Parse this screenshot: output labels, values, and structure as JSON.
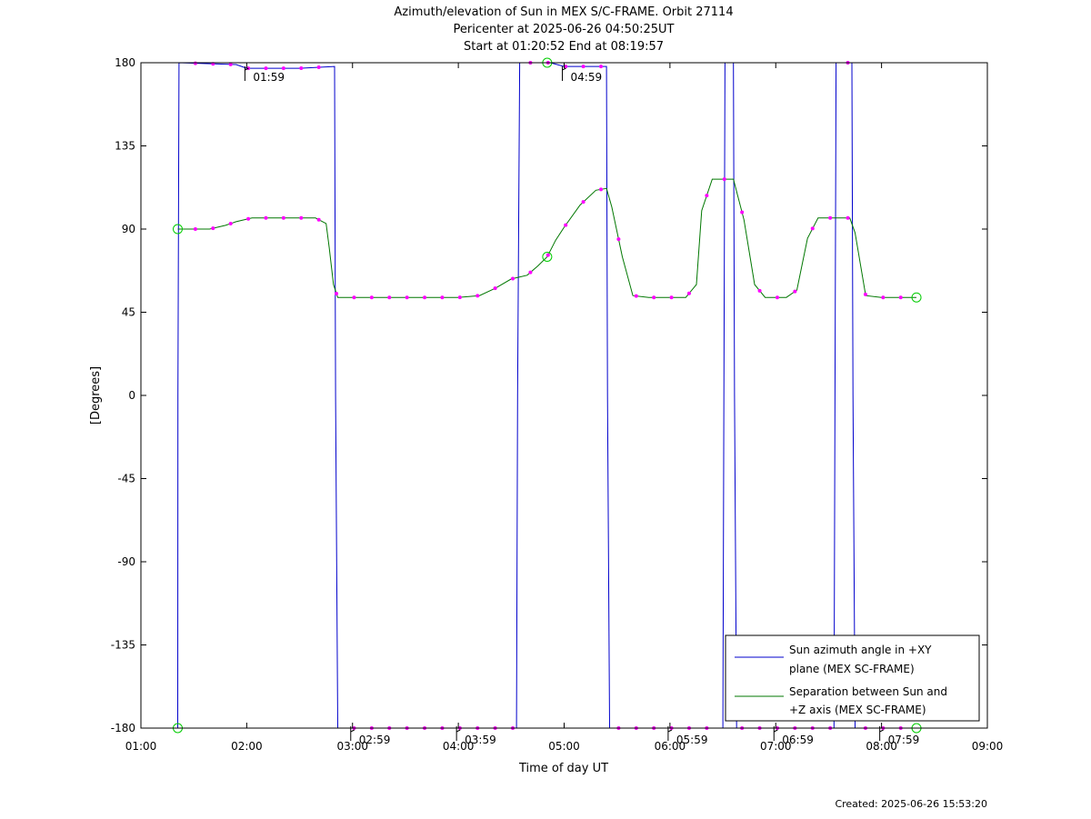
{
  "title": {
    "line1": "Azimuth/elevation of Sun in MEX S/C-FRAME.  Orbit 27114",
    "line2": "Pericenter at 2025-06-26 04:50:25UT",
    "line3": "Start at 01:20:52 End at 08:19:57"
  },
  "created": "Created: 2025-06-26 15:53:20",
  "colors": {
    "azimuth": "#0000cc",
    "separation": "#007700",
    "markers": "#ff00ff",
    "endpoints": "#00cc00"
  },
  "chart_data": {
    "type": "line",
    "xlabel": "Time of day UT",
    "ylabel": "[Degrees]",
    "xlim": [
      1.0,
      9.0
    ],
    "ylim": [
      -180,
      180
    ],
    "x_ticks": [
      "01:00",
      "02:00",
      "03:00",
      "04:00",
      "05:00",
      "06:00",
      "07:00",
      "08:00",
      "09:00"
    ],
    "y_ticks": [
      "180",
      "135",
      "90",
      "45",
      "0",
      "-45",
      "-90",
      "-135",
      "-180"
    ],
    "grid": false,
    "legend_position": "bottom-right",
    "series": [
      {
        "name": "Sun azimuth angle in +XY plane (MEX SC-FRAME)",
        "legend_lines": [
          "Sun azimuth angle in +XY",
          "plane (MEX SC-FRAME)"
        ],
        "x": [
          1.348,
          1.35,
          1.36,
          1.9,
          2.0,
          2.5,
          2.83,
          2.84,
          2.86,
          4.5,
          4.55,
          4.56,
          4.58,
          4.84,
          4.87,
          5.0,
          5.4,
          5.41,
          5.43,
          6.5,
          6.51,
          6.52,
          6.55,
          6.6,
          6.61,
          6.63,
          7.0,
          7.55,
          7.56,
          7.57,
          7.6,
          7.72,
          7.73,
          7.75,
          8.0,
          8.33
        ],
        "y": [
          -180,
          0,
          180,
          179,
          177,
          177,
          178,
          0,
          -180,
          -180,
          -180,
          0,
          180,
          180,
          180,
          178,
          178,
          0,
          -180,
          -180,
          0,
          180,
          180,
          180,
          0,
          -180,
          -180,
          -180,
          0,
          180,
          180,
          180,
          0,
          -180,
          -180,
          -180
        ]
      },
      {
        "name": "Separation between Sun and +Z axis (MEX SC-FRAME)",
        "legend_lines": [
          "Separation between Sun and",
          "+Z axis (MEX SC-FRAME)"
        ],
        "x": [
          1.348,
          1.5,
          1.65,
          1.8,
          1.9,
          2.05,
          2.2,
          2.45,
          2.65,
          2.75,
          2.78,
          2.82,
          2.86,
          2.95,
          3.2,
          3.6,
          4.0,
          4.2,
          4.35,
          4.5,
          4.65,
          4.75,
          4.84,
          4.92,
          5.0,
          5.15,
          5.3,
          5.4,
          5.45,
          5.55,
          5.65,
          5.8,
          6.0,
          6.15,
          6.25,
          6.3,
          6.4,
          6.55,
          6.6,
          6.7,
          6.8,
          6.9,
          7.1,
          7.2,
          7.3,
          7.4,
          7.55,
          7.7,
          7.75,
          7.85,
          8.0,
          8.33
        ],
        "y": [
          90,
          90,
          90,
          92,
          94,
          96,
          96,
          96,
          96,
          93,
          80,
          60,
          53,
          53,
          53,
          53,
          53,
          54,
          58,
          63,
          65,
          70,
          75,
          84,
          91,
          103,
          111,
          112,
          102,
          75,
          54,
          53,
          53,
          53,
          60,
          100,
          117,
          117,
          117,
          95,
          60,
          53,
          53,
          57,
          85,
          96,
          96,
          96,
          88,
          54,
          53,
          53
        ]
      }
    ],
    "annotations": [
      {
        "label": "01:59",
        "x": 1.983,
        "y": 180,
        "side": "below"
      },
      {
        "label": "02:59",
        "x": 2.983,
        "y": -180,
        "side": "above"
      },
      {
        "label": "03:59",
        "x": 3.983,
        "y": -180,
        "side": "above"
      },
      {
        "label": "04:59",
        "x": 4.983,
        "y": 180,
        "side": "below"
      },
      {
        "label": "05:59",
        "x": 5.983,
        "y": -180,
        "side": "above"
      },
      {
        "label": "06:59",
        "x": 6.983,
        "y": -180,
        "side": "above"
      },
      {
        "label": "07:59",
        "x": 7.983,
        "y": -180,
        "side": "above"
      }
    ]
  }
}
